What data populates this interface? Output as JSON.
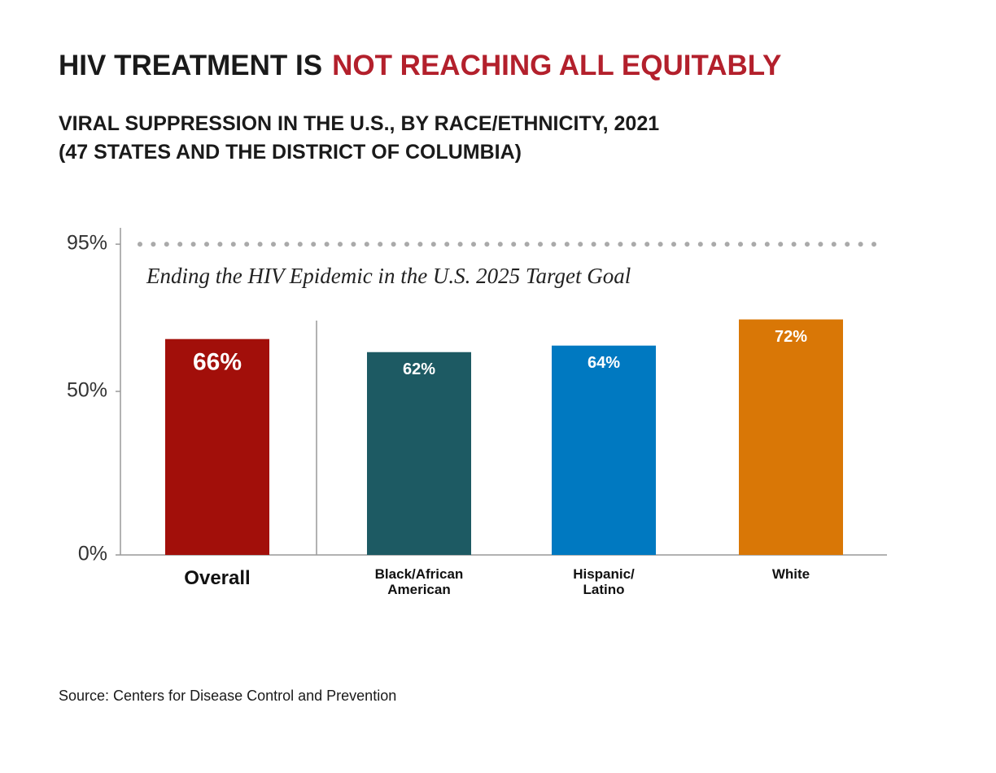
{
  "chart_data": {
    "type": "bar",
    "title": "HIV TREATMENT IS",
    "title_highlight": "NOT REACHING ALL EQUITABLY",
    "subtitle": [
      "VIRAL SUPPRESSION IN THE U.S., BY RACE/ETHNICITY, 2021",
      "(47 STATES AND THE DISTRICT OF COLUMBIA)"
    ],
    "categories": [
      "Overall",
      "Black/African\nAmerican",
      "Hispanic/\nLatino",
      "White"
    ],
    "values": [
      66,
      62,
      64,
      72
    ],
    "value_labels": [
      "66%",
      "62%",
      "64%",
      "72%"
    ],
    "colors": [
      "#a20f0a",
      "#1d5a63",
      "#0079c1",
      "#d97706"
    ],
    "ylim": [
      0,
      100
    ],
    "yticks": [
      {
        "value": 0,
        "label": "0%"
      },
      {
        "value": 50,
        "label": "50%"
      },
      {
        "value": 95,
        "label": "95%"
      }
    ],
    "target": {
      "value": 95,
      "label": "Ending the HIV Epidemic in the U.S. 2025 Target Goal"
    },
    "source": "Source: Centers for Disease Control and Prevention"
  }
}
